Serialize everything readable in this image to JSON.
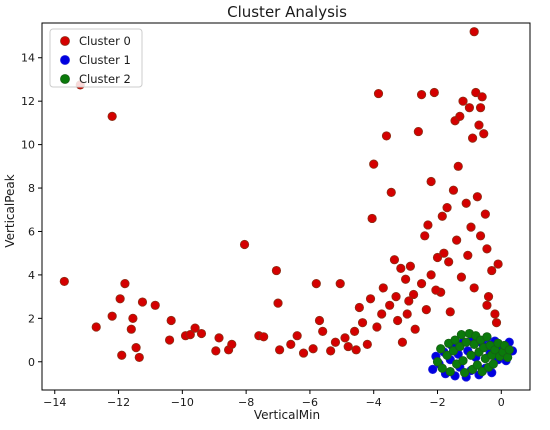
{
  "chart_data": {
    "type": "scatter",
    "title": "Cluster Analysis",
    "xlabel": "VerticalMin",
    "ylabel": "VerticalPeak",
    "xlim": [
      -14.4,
      0.9
    ],
    "ylim": [
      -1.3,
      15.6
    ],
    "x_ticks": [
      -14,
      -12,
      -10,
      -8,
      -6,
      -4,
      -2,
      0
    ],
    "y_ticks": [
      0,
      2,
      4,
      6,
      8,
      10,
      12,
      14
    ],
    "grid": false,
    "legend_position": "top-left",
    "series": [
      {
        "name": "Cluster 0",
        "color": "#d40000",
        "edge_color": "#8b2f16",
        "points": [
          [
            -13.7,
            3.7
          ],
          [
            -13.2,
            12.75
          ],
          [
            -12.2,
            11.3
          ],
          [
            -12.7,
            1.6
          ],
          [
            -12.2,
            2.1
          ],
          [
            -11.95,
            2.9
          ],
          [
            -11.8,
            3.6
          ],
          [
            -11.9,
            0.3
          ],
          [
            -11.45,
            0.65
          ],
          [
            -11.35,
            0.2
          ],
          [
            -11.55,
            2.0
          ],
          [
            -11.6,
            1.5
          ],
          [
            -11.25,
            2.75
          ],
          [
            -10.85,
            2.6
          ],
          [
            -10.4,
            1.0
          ],
          [
            -10.35,
            1.9
          ],
          [
            -9.9,
            1.2
          ],
          [
            -9.75,
            1.25
          ],
          [
            -9.6,
            1.55
          ],
          [
            -9.4,
            1.3
          ],
          [
            -8.95,
            0.5
          ],
          [
            -8.85,
            1.1
          ],
          [
            -8.55,
            0.55
          ],
          [
            -8.45,
            0.8
          ],
          [
            -8.05,
            5.4
          ],
          [
            -7.6,
            1.2
          ],
          [
            -7.45,
            1.15
          ],
          [
            -7.05,
            4.2
          ],
          [
            -7.0,
            2.7
          ],
          [
            -6.95,
            0.55
          ],
          [
            -6.6,
            0.8
          ],
          [
            -6.4,
            1.2
          ],
          [
            -6.2,
            0.4
          ],
          [
            -5.9,
            0.6
          ],
          [
            -5.8,
            3.6
          ],
          [
            -5.7,
            1.9
          ],
          [
            -5.6,
            1.4
          ],
          [
            -5.35,
            0.5
          ],
          [
            -5.2,
            0.9
          ],
          [
            -5.05,
            3.6
          ],
          [
            -4.9,
            1.1
          ],
          [
            -4.8,
            0.7
          ],
          [
            -4.6,
            1.4
          ],
          [
            -4.55,
            0.55
          ],
          [
            -4.45,
            2.5
          ],
          [
            -4.35,
            1.8
          ],
          [
            -4.2,
            0.8
          ],
          [
            -4.1,
            2.9
          ],
          [
            -4.05,
            6.6
          ],
          [
            -4.0,
            9.1
          ],
          [
            -3.85,
            12.35
          ],
          [
            -3.7,
            3.4
          ],
          [
            -3.6,
            10.4
          ],
          [
            -3.45,
            7.8
          ],
          [
            -3.35,
            4.7
          ],
          [
            -3.25,
            1.9
          ],
          [
            -3.15,
            4.3
          ],
          [
            -3.0,
            3.8
          ],
          [
            -2.95,
            2.2
          ],
          [
            -2.85,
            4.4
          ],
          [
            -2.75,
            3.1
          ],
          [
            -2.6,
            10.6
          ],
          [
            -2.5,
            12.3
          ],
          [
            -2.4,
            5.8
          ],
          [
            -2.3,
            6.3
          ],
          [
            -2.2,
            8.3
          ],
          [
            -2.1,
            12.4
          ],
          [
            -2.0,
            4.8
          ],
          [
            -1.9,
            3.2
          ],
          [
            -1.8,
            5.0
          ],
          [
            -1.7,
            7.1
          ],
          [
            -1.6,
            2.3
          ],
          [
            -1.5,
            7.9
          ],
          [
            -1.45,
            11.1
          ],
          [
            -1.35,
            9.0
          ],
          [
            -1.3,
            11.3
          ],
          [
            -1.2,
            12.0
          ],
          [
            -1.1,
            7.3
          ],
          [
            -1.0,
            11.7
          ],
          [
            -0.95,
            6.2
          ],
          [
            -0.9,
            10.3
          ],
          [
            -0.85,
            15.2
          ],
          [
            -0.8,
            12.4
          ],
          [
            -0.75,
            7.6
          ],
          [
            -0.7,
            10.9
          ],
          [
            -0.65,
            11.7
          ],
          [
            -0.6,
            12.2
          ],
          [
            -0.55,
            10.5
          ],
          [
            -0.5,
            6.8
          ],
          [
            -0.45,
            5.2
          ],
          [
            -0.4,
            3.0
          ],
          [
            -0.3,
            4.2
          ],
          [
            -0.2,
            2.2
          ],
          [
            -0.15,
            1.8
          ],
          [
            -0.1,
            4.5
          ],
          [
            -3.9,
            1.6
          ],
          [
            -3.75,
            2.2
          ],
          [
            -3.5,
            2.6
          ],
          [
            -3.3,
            3.0
          ],
          [
            -3.1,
            0.9
          ],
          [
            -2.9,
            2.8
          ],
          [
            -2.7,
            1.5
          ],
          [
            -2.5,
            3.6
          ],
          [
            -2.35,
            2.4
          ],
          [
            -2.2,
            4.0
          ],
          [
            -2.05,
            3.3
          ],
          [
            -1.85,
            6.7
          ],
          [
            -1.65,
            4.6
          ],
          [
            -1.4,
            5.6
          ],
          [
            -1.25,
            3.9
          ],
          [
            -1.05,
            4.9
          ],
          [
            -0.85,
            3.4
          ],
          [
            -0.65,
            5.8
          ],
          [
            -0.45,
            2.6
          ]
        ]
      },
      {
        "name": "Cluster 1",
        "color": "#0000e0",
        "edge_color": "#1b1bd9",
        "points": [
          [
            -2.15,
            -0.35
          ],
          [
            -2.05,
            0.25
          ],
          [
            -1.95,
            -0.1
          ],
          [
            -1.8,
            0.45
          ],
          [
            -1.75,
            -0.55
          ],
          [
            -1.6,
            0.1
          ],
          [
            -1.55,
            0.75
          ],
          [
            -1.45,
            -0.65
          ],
          [
            -1.35,
            0.35
          ],
          [
            -1.3,
            -0.25
          ],
          [
            -1.2,
            0.9
          ],
          [
            -1.1,
            -0.7
          ],
          [
            -1.05,
            0.5
          ],
          [
            -0.95,
            -0.4
          ],
          [
            -0.9,
            1.05
          ],
          [
            -0.8,
            0.2
          ],
          [
            -0.7,
            -0.6
          ],
          [
            -0.6,
            0.85
          ],
          [
            -0.5,
            -0.3
          ],
          [
            -0.45,
            1.1
          ],
          [
            -0.35,
            0.4
          ],
          [
            -0.3,
            -0.5
          ],
          [
            -0.2,
            0.95
          ],
          [
            -0.1,
            0.1
          ],
          [
            0.05,
            0.6
          ],
          [
            0.15,
            0.05
          ],
          [
            0.25,
            0.9
          ],
          [
            0.35,
            0.5
          ]
        ]
      },
      {
        "name": "Cluster 2",
        "color": "#0b7a0b",
        "edge_color": "#155f15",
        "points": [
          [
            -2.0,
            0.0
          ],
          [
            -1.9,
            0.6
          ],
          [
            -1.85,
            -0.3
          ],
          [
            -1.7,
            0.3
          ],
          [
            -1.65,
            0.85
          ],
          [
            -1.6,
            -0.45
          ],
          [
            -1.5,
            0.5
          ],
          [
            -1.45,
            1.0
          ],
          [
            -1.4,
            -0.1
          ],
          [
            -1.3,
            0.7
          ],
          [
            -1.25,
            1.25
          ],
          [
            -1.2,
            0.05
          ],
          [
            -1.15,
            -0.5
          ],
          [
            -1.1,
            0.9
          ],
          [
            -1.0,
            1.3
          ],
          [
            -0.95,
            0.3
          ],
          [
            -0.9,
            -0.35
          ],
          [
            -0.85,
            0.8
          ],
          [
            -0.8,
            1.2
          ],
          [
            -0.75,
            -0.15
          ],
          [
            -0.7,
            0.45
          ],
          [
            -0.65,
            1.0
          ],
          [
            -0.6,
            -0.45
          ],
          [
            -0.55,
            0.65
          ],
          [
            -0.5,
            0.15
          ],
          [
            -0.45,
            1.15
          ],
          [
            -0.4,
            -0.25
          ],
          [
            -0.35,
            0.75
          ],
          [
            -0.3,
            0.3
          ],
          [
            -0.25,
            -0.1
          ],
          [
            -0.2,
            0.55
          ],
          [
            -0.1,
            0.85
          ],
          [
            -0.05,
            0.25
          ],
          [
            0.05,
            0.45
          ],
          [
            0.1,
            0.75
          ],
          [
            0.2,
            0.2
          ],
          [
            0.25,
            0.55
          ]
        ]
      }
    ]
  }
}
